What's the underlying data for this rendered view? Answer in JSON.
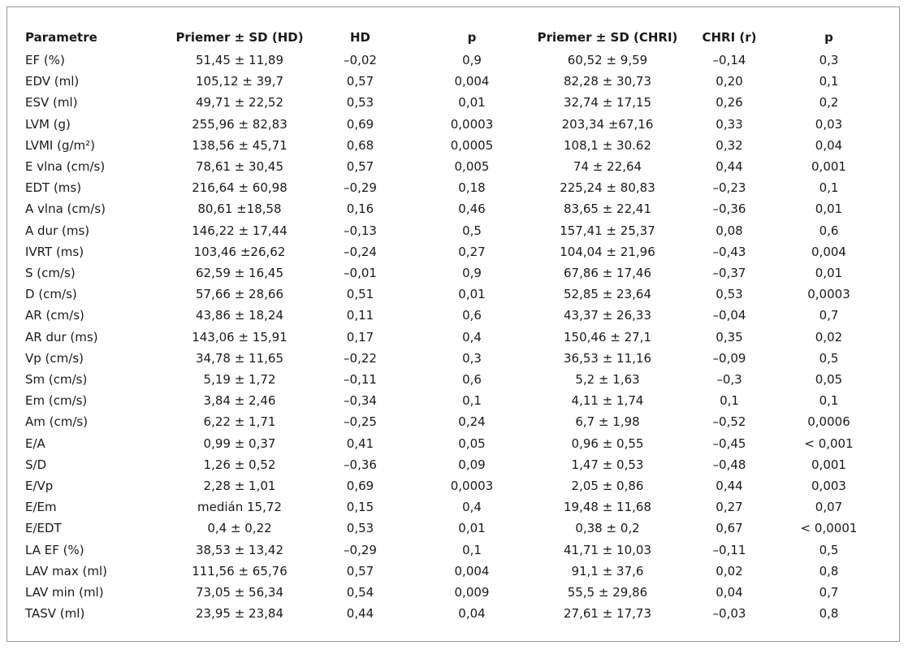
{
  "table": {
    "headers": [
      "Parametre",
      "Priemer ± SD (HD)",
      "HD",
      "p",
      "Priemer ± SD (CHRI)",
      "CHRI (r)",
      "p"
    ],
    "rows": [
      [
        "EF (%)",
        "51,45 ± 11,89",
        "–0,02",
        "0,9",
        "60,52 ± 9,59",
        "–0,14",
        "0,3"
      ],
      [
        "EDV (ml)",
        "105,12 ± 39,7",
        "0,57",
        "0,004",
        "82,28 ± 30,73",
        "0,20",
        "0,1"
      ],
      [
        "ESV (ml)",
        "49,71 ± 22,52",
        "0,53",
        "0,01",
        "32,74 ± 17,15",
        "0,26",
        "0,2"
      ],
      [
        "LVM (g)",
        "255,96 ± 82,83",
        "0,69",
        "0,0003",
        "203,34 ±67,16",
        "0,33",
        "0,03"
      ],
      [
        "LVMI (g/m²)",
        "138,56 ± 45,71",
        "0,68",
        "0,0005",
        "108,1 ± 30.62",
        "0,32",
        "0,04"
      ],
      [
        "E vlna (cm/s)",
        "78,61 ± 30,45",
        "0,57",
        "0,005",
        "74 ± 22,64",
        "0,44",
        "0,001"
      ],
      [
        "EDT (ms)",
        "216,64 ± 60,98",
        "–0,29",
        "0,18",
        "225,24 ± 80,83",
        "–0,23",
        "0,1"
      ],
      [
        "A vlna (cm/s)",
        "80,61 ±18,58",
        "0,16",
        "0,46",
        "83,65 ± 22,41",
        "–0,36",
        "0,01"
      ],
      [
        "A dur (ms)",
        "146,22 ± 17,44",
        "–0,13",
        "0,5",
        "157,41 ± 25,37",
        "0,08",
        "0,6"
      ],
      [
        "IVRT (ms)",
        "103,46 ±26,62",
        "–0,24",
        "0,27",
        "104,04 ± 21,96",
        "–0,43",
        "0,004"
      ],
      [
        "S (cm/s)",
        "62,59 ± 16,45",
        "–0,01",
        "0,9",
        "67,86 ± 17,46",
        "–0,37",
        "0,01"
      ],
      [
        "D (cm/s)",
        "57,66 ± 28,66",
        "0,51",
        "0,01",
        "52,85 ± 23,64",
        "0,53",
        "0,0003"
      ],
      [
        "AR (cm/s)",
        "43,86 ± 18,24",
        "0,11",
        "0,6",
        "43,37 ± 26,33",
        "–0,04",
        "0,7"
      ],
      [
        "AR dur (ms)",
        "143,06 ± 15,91",
        "0,17",
        "0,4",
        "150,46 ± 27,1",
        "0,35",
        "0,02"
      ],
      [
        "Vp (cm/s)",
        "34,78 ± 11,65",
        "–0,22",
        "0,3",
        "36,53 ± 11,16",
        "–0,09",
        "0,5"
      ],
      [
        "Sm (cm/s)",
        "5,19 ± 1,72",
        "–0,11",
        "0,6",
        "5,2 ± 1,63",
        "–0,3",
        "0,05"
      ],
      [
        "Em (cm/s)",
        "3,84 ± 2,46",
        "–0,34",
        "0,1",
        "4,11 ± 1,74",
        "0,1",
        "0,1"
      ],
      [
        "Am (cm/s)",
        "6,22 ± 1,71",
        "–0,25",
        "0,24",
        "6,7 ± 1,98",
        "–0,52",
        "0,0006"
      ],
      [
        "E/A",
        "0,99 ± 0,37",
        "0,41",
        "0,05",
        "0,96 ± 0,55",
        "–0,45",
        "< 0,001"
      ],
      [
        "S/D",
        "1,26 ± 0,52",
        "–0,36",
        "0,09",
        "1,47 ± 0,53",
        "–0,48",
        "0,001"
      ],
      [
        "E/Vp",
        "2,28 ± 1,01",
        "0,69",
        "0,0003",
        "2,05 ± 0,86",
        "0,44",
        "0,003"
      ],
      [
        "E/Em",
        "medián 15,72",
        "0,15",
        "0,4",
        "19,48 ± 11,68",
        "0,27",
        "0,07"
      ],
      [
        "E/EDT",
        "0,4 ± 0,22",
        "0,53",
        "0,01",
        "0,38 ± 0,2",
        "0,67",
        "< 0,0001"
      ],
      [
        "LA EF (%)",
        "38,53 ± 13,42",
        "–0,29",
        "0,1",
        "41,71 ± 10,03",
        "–0,11",
        "0,5"
      ],
      [
        "LAV max (ml)",
        "111,56 ± 65,76",
        "0,57",
        "0,004",
        "91,1 ± 37,6",
        "0,02",
        "0,8"
      ],
      [
        "LAV min (ml)",
        "73,05 ± 56,34",
        "0,54",
        "0,009",
        "55,5 ± 29,86",
        "0,04",
        "0,7"
      ],
      [
        "TASV (ml)",
        "23,95 ± 23,84",
        "0,44",
        "0,04",
        "27,61 ± 17,73",
        "–0,03",
        "0,8"
      ]
    ]
  }
}
